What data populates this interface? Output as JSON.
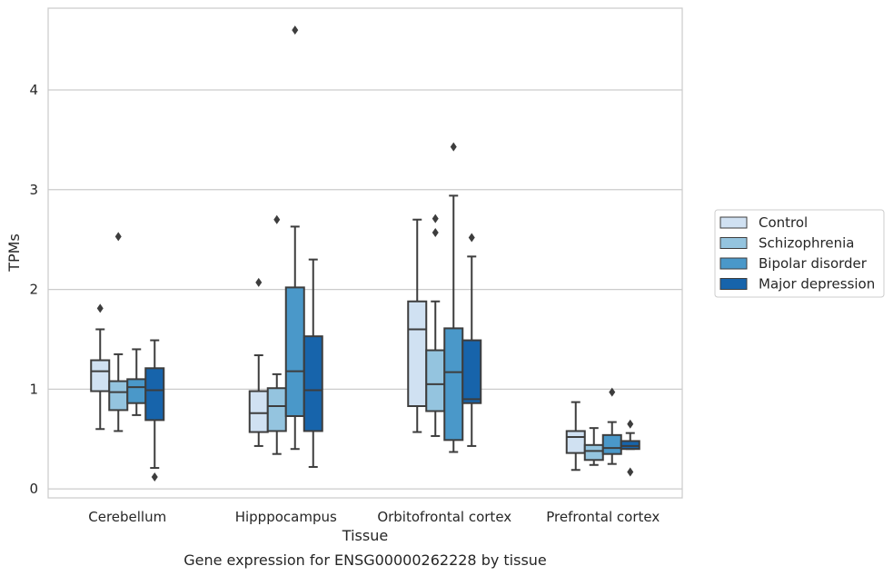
{
  "chart_data": {
    "type": "box",
    "xlabel": "Tissue",
    "ylabel": "TPMs",
    "caption": "Gene expression for ENSG00000262228 by tissue",
    "categories": [
      "Cerebellum",
      "Hipppocampus",
      "Orbitofrontal cortex",
      "Prefrontal cortex"
    ],
    "ylim": [
      -0.09,
      4.82
    ],
    "yticks": [
      "0",
      "1",
      "2",
      "3",
      "4"
    ],
    "grid": "horizontal",
    "legend_position": "right",
    "series": [
      {
        "name": "Control",
        "color": "#d0e1f2",
        "boxes": [
          {
            "whisker_low": 0.6,
            "q1": 0.98,
            "median": 1.18,
            "q3": 1.29,
            "whisker_high": 1.6,
            "outliers": [
              1.81
            ]
          },
          {
            "whisker_low": 0.43,
            "q1": 0.57,
            "median": 0.76,
            "q3": 0.98,
            "whisker_high": 1.34,
            "outliers": [
              2.07
            ]
          },
          {
            "whisker_low": 0.57,
            "q1": 0.83,
            "median": 1.6,
            "q3": 1.88,
            "whisker_high": 2.7,
            "outliers": []
          },
          {
            "whisker_low": 0.19,
            "q1": 0.36,
            "median": 0.52,
            "q3": 0.58,
            "whisker_high": 0.87,
            "outliers": []
          }
        ]
      },
      {
        "name": "Schizophrenia",
        "color": "#94c4df",
        "boxes": [
          {
            "whisker_low": 0.58,
            "q1": 0.79,
            "median": 0.97,
            "q3": 1.08,
            "whisker_high": 1.35,
            "outliers": [
              2.53
            ]
          },
          {
            "whisker_low": 0.35,
            "q1": 0.58,
            "median": 0.83,
            "q3": 1.01,
            "whisker_high": 1.15,
            "outliers": [
              2.7
            ]
          },
          {
            "whisker_low": 0.53,
            "q1": 0.78,
            "median": 1.05,
            "q3": 1.39,
            "whisker_high": 1.88,
            "outliers": [
              2.57,
              2.71
            ]
          },
          {
            "whisker_low": 0.24,
            "q1": 0.29,
            "median": 0.38,
            "q3": 0.44,
            "whisker_high": 0.61,
            "outliers": []
          }
        ]
      },
      {
        "name": "Bipolar disorder",
        "color": "#4a98c9",
        "boxes": [
          {
            "whisker_low": 0.74,
            "q1": 0.86,
            "median": 1.02,
            "q3": 1.1,
            "whisker_high": 1.4,
            "outliers": []
          },
          {
            "whisker_low": 0.4,
            "q1": 0.73,
            "median": 1.18,
            "q3": 2.02,
            "whisker_high": 2.63,
            "outliers": [
              4.6
            ]
          },
          {
            "whisker_low": 0.37,
            "q1": 0.49,
            "median": 1.17,
            "q3": 1.61,
            "whisker_high": 2.94,
            "outliers": [
              3.43
            ]
          },
          {
            "whisker_low": 0.25,
            "q1": 0.35,
            "median": 0.41,
            "q3": 0.54,
            "whisker_high": 0.67,
            "outliers": [
              0.97
            ]
          }
        ]
      },
      {
        "name": "Major depression",
        "color": "#1764ab",
        "boxes": [
          {
            "whisker_low": 0.21,
            "q1": 0.69,
            "median": 0.99,
            "q3": 1.21,
            "whisker_high": 1.49,
            "outliers": [
              0.12
            ]
          },
          {
            "whisker_low": 0.22,
            "q1": 0.58,
            "median": 0.99,
            "q3": 1.53,
            "whisker_high": 2.3,
            "outliers": []
          },
          {
            "whisker_low": 0.43,
            "q1": 0.86,
            "median": 0.9,
            "q3": 1.49,
            "whisker_high": 2.33,
            "outliers": [
              2.52
            ]
          },
          {
            "whisker_low": 0.4,
            "q1": 0.4,
            "median": 0.43,
            "q3": 0.48,
            "whisker_high": 0.56,
            "outliers": [
              0.65,
              0.17
            ]
          }
        ]
      }
    ]
  }
}
